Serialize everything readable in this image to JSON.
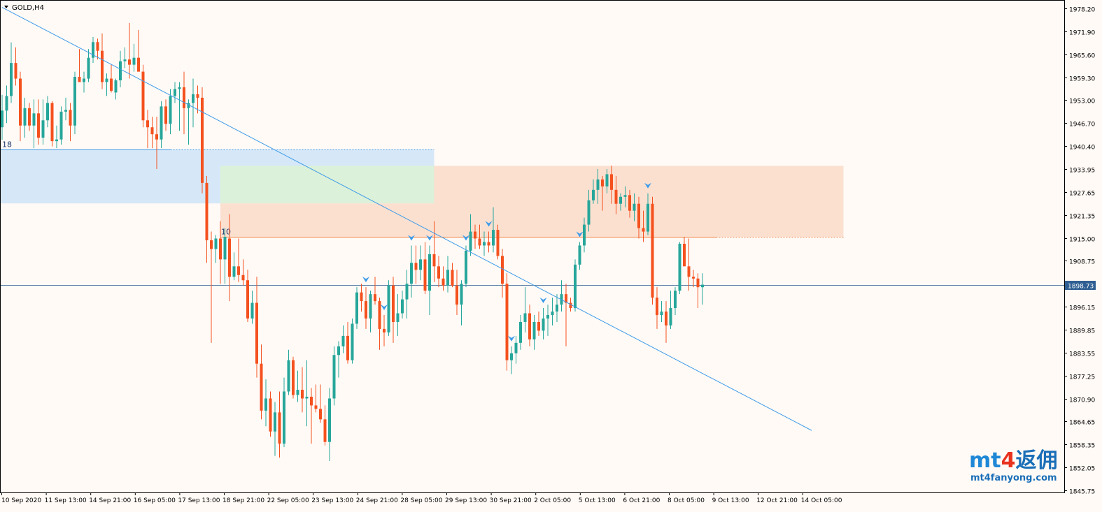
{
  "chart_data": {
    "type": "candlestick",
    "symbol_label": "GOLD,H4",
    "price_axis": {
      "min": 1845.8,
      "max": 1978.2,
      "ticks": [
        "1978.20",
        "1971.90",
        "1965.60",
        "1959.30",
        "1953.00",
        "1946.70",
        "1940.40",
        "1933.95",
        "1927.65",
        "1921.35",
        "1915.00",
        "1908.75",
        "1902.45",
        "1896.15",
        "1889.85",
        "1883.55",
        "1877.25",
        "1870.90",
        "1864.65",
        "1858.35",
        "1852.05",
        "1845.75"
      ]
    },
    "time_axis": {
      "labels": [
        "10 Sep 2020",
        "11 Sep 13:00",
        "14 Sep 21:00",
        "16 Sep 05:00",
        "17 Sep 13:00",
        "18 Sep 21:00",
        "22 Sep 05:00",
        "23 Sep 13:00",
        "24 Sep 21:00",
        "28 Sep 05:00",
        "29 Sep 13:00",
        "30 Sep 21:00",
        "2 Oct 05:00",
        "5 Oct 13:00",
        "6 Oct 21:00",
        "8 Oct 05:00",
        "9 Oct 13:00",
        "12 Oct 21:00",
        "14 Oct 05:00"
      ]
    },
    "current_price": "1898.73",
    "current_price_value": 1898.73,
    "colors": {
      "bull": "#26a69a",
      "bear": "#f4511e",
      "trendline": "#3d9be9",
      "zone_blue": "#d6e8f8",
      "zone_green": "#dcf1d9",
      "zone_orange": "#fbe0d0",
      "price_line": "#5b7fa6",
      "resistance_line": "#f08040",
      "fractal": "#3d9be9"
    },
    "zones": [
      {
        "name": "blue-zone",
        "from_bar": 0,
        "to_bar": 95,
        "top": 1937.6,
        "bottom": 1922.1
      },
      {
        "name": "green-zone",
        "from_bar": 48,
        "to_bar": 95,
        "top": 1932.9,
        "bottom": 1922.1
      },
      {
        "name": "orange-zone-left",
        "from_bar": 48,
        "to_bar": 95,
        "top": 1922.1,
        "bottom": 1912.5
      },
      {
        "name": "orange-zone-right",
        "from_bar": 95,
        "to_bar": 185,
        "top": 1932.9,
        "bottom": 1912.5
      }
    ],
    "levels": [
      {
        "name": "level-18",
        "label": "18",
        "price": 1937.6,
        "solid_to_bar": 37,
        "dashed_to_bar": 95
      },
      {
        "name": "level-10",
        "label": "10",
        "price": 1912.5,
        "solid_to_bar": 157,
        "dashed_to_bar": 185
      }
    ],
    "trendline": {
      "from_bar": 0,
      "from_price": 1978.5,
      "to_bar": 178,
      "to_price": 1856.8
    },
    "fractals_at_bars": [
      80,
      84,
      90,
      94,
      102,
      107,
      112,
      119,
      127,
      142,
      155,
      168
    ],
    "bars": [
      [
        1944.0,
        1953.3,
        1940.4,
        1948.8
      ],
      [
        1948.8,
        1956.0,
        1945.2,
        1953.0
      ],
      [
        1953.0,
        1968.4,
        1951.0,
        1962.5
      ],
      [
        1962.5,
        1967.0,
        1956.0,
        1958.0
      ],
      [
        1958.0,
        1960.0,
        1940.0,
        1944.5
      ],
      [
        1944.5,
        1952.5,
        1941.0,
        1949.5
      ],
      [
        1949.5,
        1951.0,
        1943.0,
        1944.5
      ],
      [
        1944.5,
        1952.0,
        1938.0,
        1948.0
      ],
      [
        1948.0,
        1952.0,
        1939.0,
        1941.0
      ],
      [
        1941.0,
        1952.0,
        1939.0,
        1946.0
      ],
      [
        1946.0,
        1953.0,
        1944.0,
        1951.0
      ],
      [
        1951.0,
        1951.5,
        1938.5,
        1940.0
      ],
      [
        1940.0,
        1944.5,
        1938.0,
        1940.5
      ],
      [
        1940.5,
        1950.0,
        1939.0,
        1948.5
      ],
      [
        1948.5,
        1952.5,
        1946.0,
        1949.0
      ],
      [
        1949.0,
        1951.0,
        1940.0,
        1944.5
      ],
      [
        1944.5,
        1960.0,
        1942.0,
        1958.5
      ],
      [
        1958.5,
        1966.5,
        1957.0,
        1957.0
      ],
      [
        1957.0,
        1960.0,
        1954.0,
        1958.0
      ],
      [
        1958.0,
        1966.5,
        1957.0,
        1964.0
      ],
      [
        1964.0,
        1970.0,
        1962.5,
        1968.5
      ],
      [
        1968.5,
        1969.5,
        1963.5,
        1966.0
      ],
      [
        1966.0,
        1971.0,
        1955.0,
        1957.0
      ],
      [
        1957.0,
        1959.5,
        1953.0,
        1958.0
      ],
      [
        1958.0,
        1962.0,
        1954.0,
        1954.5
      ],
      [
        1954.0,
        1958.0,
        1952.0,
        1957.5
      ],
      [
        1957.5,
        1966.0,
        1955.5,
        1963.0
      ],
      [
        1963.0,
        1967.0,
        1961.0,
        1963.5
      ],
      [
        1963.5,
        1974.0,
        1958.0,
        1962.0
      ],
      [
        1962.0,
        1968.0,
        1960.0,
        1964.0
      ],
      [
        1964.0,
        1972.0,
        1960.0,
        1960.0
      ],
      [
        1960.0,
        1962.0,
        1944.0,
        1946.0
      ],
      [
        1946.0,
        1949.0,
        1938.0,
        1944.0
      ],
      [
        1944.0,
        1947.0,
        1938.0,
        1942.0
      ],
      [
        1942.0,
        1947.0,
        1932.0,
        1940.5
      ],
      [
        1940.5,
        1951.5,
        1938.0,
        1950.0
      ],
      [
        1950.0,
        1952.0,
        1943.0,
        1945.0
      ],
      [
        1945.0,
        1955.0,
        1942.0,
        1953.0
      ],
      [
        1953.0,
        1957.0,
        1951.0,
        1955.0
      ],
      [
        1955.0,
        1957.0,
        1943.0,
        1955.5
      ],
      [
        1955.5,
        1960.0,
        1942.0,
        1949.5
      ],
      [
        1949.5,
        1952.0,
        1939.0,
        1951.0
      ],
      [
        1951.0,
        1958.0,
        1944.0,
        1953.5
      ],
      [
        1953.5,
        1956.0,
        1948.0,
        1952.5
      ],
      [
        1952.5,
        1955.5,
        1925.0,
        1928.0
      ],
      [
        1928.0,
        1930.0,
        1905.0,
        1911.5
      ],
      [
        1911.5,
        1914.0,
        1882.0,
        1909.0
      ],
      [
        1909.0,
        1913.0,
        1905.0,
        1912.0
      ],
      [
        1912.0,
        1917.0,
        1899.0,
        1906.0
      ],
      [
        1906.0,
        1915.0,
        1899.0,
        1912.5
      ],
      [
        1912.0,
        1919.0,
        1894.0,
        1901.0
      ],
      [
        1901.0,
        1908.0,
        1900.0,
        1904.0
      ],
      [
        1904.0,
        1912.0,
        1899.5,
        1901.5
      ],
      [
        1901.5,
        1906.0,
        1898.5,
        1900.0
      ],
      [
        1900.0,
        1903.0,
        1888.0,
        1889.0
      ],
      [
        1889.0,
        1897.0,
        1887.5,
        1893.5
      ],
      [
        1893.5,
        1901.0,
        1872.0,
        1876.0
      ],
      [
        1876.0,
        1881.5,
        1860.0,
        1862.5
      ],
      [
        1862.5,
        1871.5,
        1858.0,
        1866.0
      ],
      [
        1866.0,
        1868.0,
        1855.0,
        1856.5
      ],
      [
        1856.5,
        1865.0,
        1849.5,
        1862.0
      ],
      [
        1862.0,
        1868.0,
        1849.0,
        1853.0
      ],
      [
        1853.0,
        1872.0,
        1852.0,
        1868.0
      ],
      [
        1868.0,
        1880.0,
        1867.0,
        1877.0
      ],
      [
        1877.0,
        1878.0,
        1866.0,
        1867.0
      ],
      [
        1867.0,
        1874.0,
        1865.0,
        1868.5
      ],
      [
        1868.5,
        1875.0,
        1862.0,
        1866.0
      ],
      [
        1866.0,
        1877.0,
        1858.0,
        1866.5
      ],
      [
        1866.5,
        1869.0,
        1853.0,
        1864.0
      ],
      [
        1864.0,
        1870.0,
        1862.0,
        1863.0
      ],
      [
        1863.0,
        1870.0,
        1859.0,
        1860.0
      ],
      [
        1860.0,
        1864.0,
        1852.5,
        1853.5
      ],
      [
        1853.5,
        1869.0,
        1848.0,
        1866.0
      ],
      [
        1866.0,
        1881.0,
        1864.0,
        1878.5
      ],
      [
        1878.5,
        1882.5,
        1872.0,
        1881.0
      ],
      [
        1881.0,
        1887.0,
        1879.0,
        1884.0
      ],
      [
        1884.0,
        1888.0,
        1876.0,
        1877.0
      ],
      [
        1877.0,
        1889.0,
        1876.0,
        1887.5
      ],
      [
        1887.5,
        1898.0,
        1886.0,
        1896.5
      ],
      [
        1896.5,
        1899.0,
        1891.0,
        1894.0
      ],
      [
        1894.0,
        1898.0,
        1886.0,
        1889.0
      ],
      [
        1889.0,
        1897.0,
        1885.0,
        1896.0
      ],
      [
        1896.0,
        1901.0,
        1893.0,
        1894.0
      ],
      [
        1894.0,
        1895.0,
        1880.0,
        1886.0
      ],
      [
        1886.0,
        1890.0,
        1881.0,
        1885.0
      ],
      [
        1885.0,
        1900.0,
        1884.0,
        1898.5
      ],
      [
        1898.5,
        1901.0,
        1882.0,
        1888.0
      ],
      [
        1888.0,
        1896.0,
        1884.0,
        1890.5
      ],
      [
        1890.5,
        1897.0,
        1889.0,
        1894.5
      ],
      [
        1894.5,
        1903.0,
        1889.0,
        1899.0
      ],
      [
        1899.0,
        1910.0,
        1895.0,
        1905.0
      ],
      [
        1905.0,
        1910.0,
        1899.0,
        1903.0
      ],
      [
        1903.0,
        1910.0,
        1900.0,
        1906.0
      ],
      [
        1906.0,
        1911.0,
        1896.0,
        1897.0
      ],
      [
        1897.0,
        1910.0,
        1890.0,
        1907.5
      ],
      [
        1907.5,
        1917.0,
        1899.5,
        1904.0
      ],
      [
        1904.0,
        1907.0,
        1898.0,
        1900.5
      ],
      [
        1900.5,
        1904.0,
        1897.0,
        1898.5
      ],
      [
        1898.5,
        1907.0,
        1896.5,
        1903.0
      ],
      [
        1903.0,
        1905.0,
        1898.0,
        1898.5
      ],
      [
        1898.5,
        1903.0,
        1890.0,
        1893.0
      ],
      [
        1893.0,
        1900.0,
        1887.0,
        1899.0
      ],
      [
        1899.0,
        1910.0,
        1898.0,
        1908.5
      ],
      [
        1908.5,
        1919.0,
        1907.0,
        1914.0
      ],
      [
        1914.0,
        1916.0,
        1909.0,
        1912.0
      ],
      [
        1912.0,
        1916.0,
        1909.0,
        1910.0
      ],
      [
        1910.0,
        1914.0,
        1907.0,
        1911.0
      ],
      [
        1911.0,
        1914.0,
        1908.0,
        1910.0
      ],
      [
        1910.0,
        1921.0,
        1908.0,
        1914.5
      ],
      [
        1914.5,
        1916.0,
        1906.0,
        1907.0
      ],
      [
        1907.0,
        1909.0,
        1895.0,
        1899.0
      ],
      [
        1899.0,
        1902.0,
        1874.0,
        1877.0
      ],
      [
        1877.0,
        1881.0,
        1873.0,
        1879.0
      ],
      [
        1879.0,
        1884.0,
        1876.0,
        1882.0
      ],
      [
        1882.0,
        1890.0,
        1880.0,
        1888.0
      ],
      [
        1888.0,
        1898.0,
        1885.0,
        1890.5
      ],
      [
        1890.5,
        1893.0,
        1881.0,
        1883.0
      ],
      [
        1883.0,
        1890.0,
        1880.0,
        1888.0
      ],
      [
        1888.0,
        1891.0,
        1884.0,
        1885.5
      ],
      [
        1885.5,
        1892.0,
        1883.0,
        1889.0
      ],
      [
        1889.0,
        1893.0,
        1884.0,
        1890.0
      ],
      [
        1890.0,
        1895.0,
        1887.0,
        1891.0
      ],
      [
        1891.0,
        1896.0,
        1888.0,
        1893.0
      ],
      [
        1893.0,
        1900.0,
        1891.0,
        1896.0
      ],
      [
        1896.0,
        1899.0,
        1881.0,
        1893.5
      ],
      [
        1893.5,
        1895.0,
        1891.0,
        1892.0
      ],
      [
        1892.0,
        1906.0,
        1891.0,
        1904.5
      ],
      [
        1904.5,
        1911.0,
        1903.0,
        1910.0
      ],
      [
        1910.0,
        1918.0,
        1908.0,
        1916.0
      ],
      [
        1916.0,
        1926.0,
        1914.0,
        1923.0
      ],
      [
        1923.0,
        1929.0,
        1922.0,
        1926.0
      ],
      [
        1926.0,
        1932.0,
        1922.0,
        1929.0
      ],
      [
        1929.0,
        1930.0,
        1920.0,
        1927.0
      ],
      [
        1927.0,
        1932.0,
        1925.0,
        1930.5
      ],
      [
        1930.5,
        1933.0,
        1922.0,
        1926.0
      ],
      [
        1926.0,
        1930.0,
        1919.0,
        1922.0
      ],
      [
        1922.0,
        1925.0,
        1920.0,
        1924.0
      ],
      [
        1924.0,
        1927.0,
        1921.0,
        1924.5
      ],
      [
        1924.5,
        1926.0,
        1918.0,
        1920.0
      ],
      [
        1920.0,
        1925.0,
        1917.0,
        1922.0
      ],
      [
        1922.0,
        1924.0,
        1912.0,
        1915.0
      ],
      [
        1915.0,
        1920.0,
        1911.0,
        1914.0
      ],
      [
        1914.0,
        1925.0,
        1913.0,
        1922.0
      ],
      [
        1922.0,
        1924.0,
        1893.0,
        1895.0
      ],
      [
        1895.0,
        1898.0,
        1886.0,
        1890.0
      ],
      [
        1890.0,
        1894.0,
        1888.0,
        1891.0
      ],
      [
        1891.0,
        1894.0,
        1882.0,
        1887.0
      ],
      [
        1887.0,
        1897.0,
        1886.0,
        1892.0
      ],
      [
        1892.0,
        1898.0,
        1890.0,
        1897.0
      ],
      [
        1897.0,
        1911.0,
        1896.0,
        1910.5
      ],
      [
        1910.5,
        1912.5,
        1906.0,
        1904.0
      ],
      [
        1904.0,
        1912.0,
        1897.0,
        1901.0
      ],
      [
        1901.0,
        1903.0,
        1898.0,
        1900.5
      ],
      [
        1900.5,
        1902.0,
        1892.0,
        1898.0
      ],
      [
        1898.0,
        1902.0,
        1893.0,
        1898.73
      ]
    ]
  }
}
